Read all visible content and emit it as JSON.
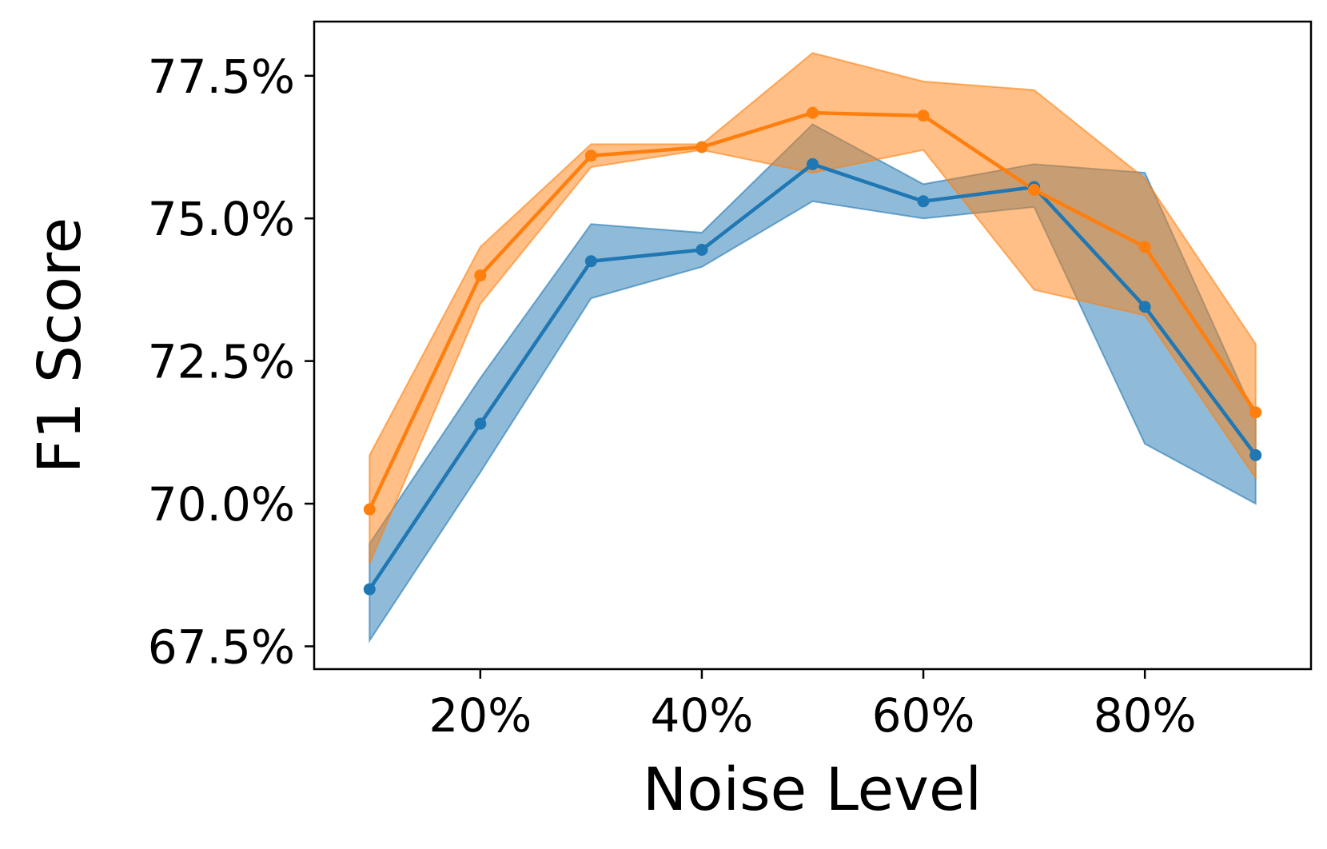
{
  "chart_data": {
    "type": "line",
    "title": "",
    "xlabel": "Noise Level",
    "ylabel": "F1 Score",
    "x": [
      10,
      20,
      30,
      40,
      50,
      60,
      70,
      80,
      90
    ],
    "xlim": [
      5,
      95
    ],
    "ylim": [
      67.1,
      78.45
    ],
    "x_ticks": [
      {
        "value": 20,
        "label": "20%"
      },
      {
        "value": 40,
        "label": "40%"
      },
      {
        "value": 60,
        "label": "60%"
      },
      {
        "value": 80,
        "label": "80%"
      }
    ],
    "y_ticks": [
      {
        "value": 67.5,
        "label": "67.5%"
      },
      {
        "value": 70.0,
        "label": "70.0%"
      },
      {
        "value": 72.5,
        "label": "72.5%"
      },
      {
        "value": 75.0,
        "label": "75.0%"
      },
      {
        "value": 77.5,
        "label": "77.5%"
      }
    ],
    "grid": false,
    "legend": "none",
    "series": [
      {
        "color": "#1f77b4",
        "values": [
          68.5,
          71.4,
          74.25,
          74.45,
          75.95,
          75.3,
          75.55,
          73.45,
          70.85
        ],
        "lower": [
          67.6,
          70.55,
          73.6,
          74.15,
          75.3,
          75.0,
          75.2,
          71.05,
          70.0
        ],
        "upper": [
          69.3,
          72.2,
          74.9,
          74.75,
          76.65,
          75.6,
          75.95,
          75.8,
          71.5
        ]
      },
      {
        "color": "#ff7f0e",
        "values": [
          69.9,
          74.0,
          76.1,
          76.25,
          76.85,
          76.8,
          75.5,
          74.5,
          71.6
        ],
        "lower": [
          68.95,
          73.5,
          75.9,
          76.2,
          75.8,
          76.2,
          73.75,
          73.3,
          70.45
        ],
        "upper": [
          70.85,
          74.5,
          76.3,
          76.3,
          77.9,
          77.4,
          77.25,
          75.7,
          72.8
        ]
      }
    ]
  }
}
